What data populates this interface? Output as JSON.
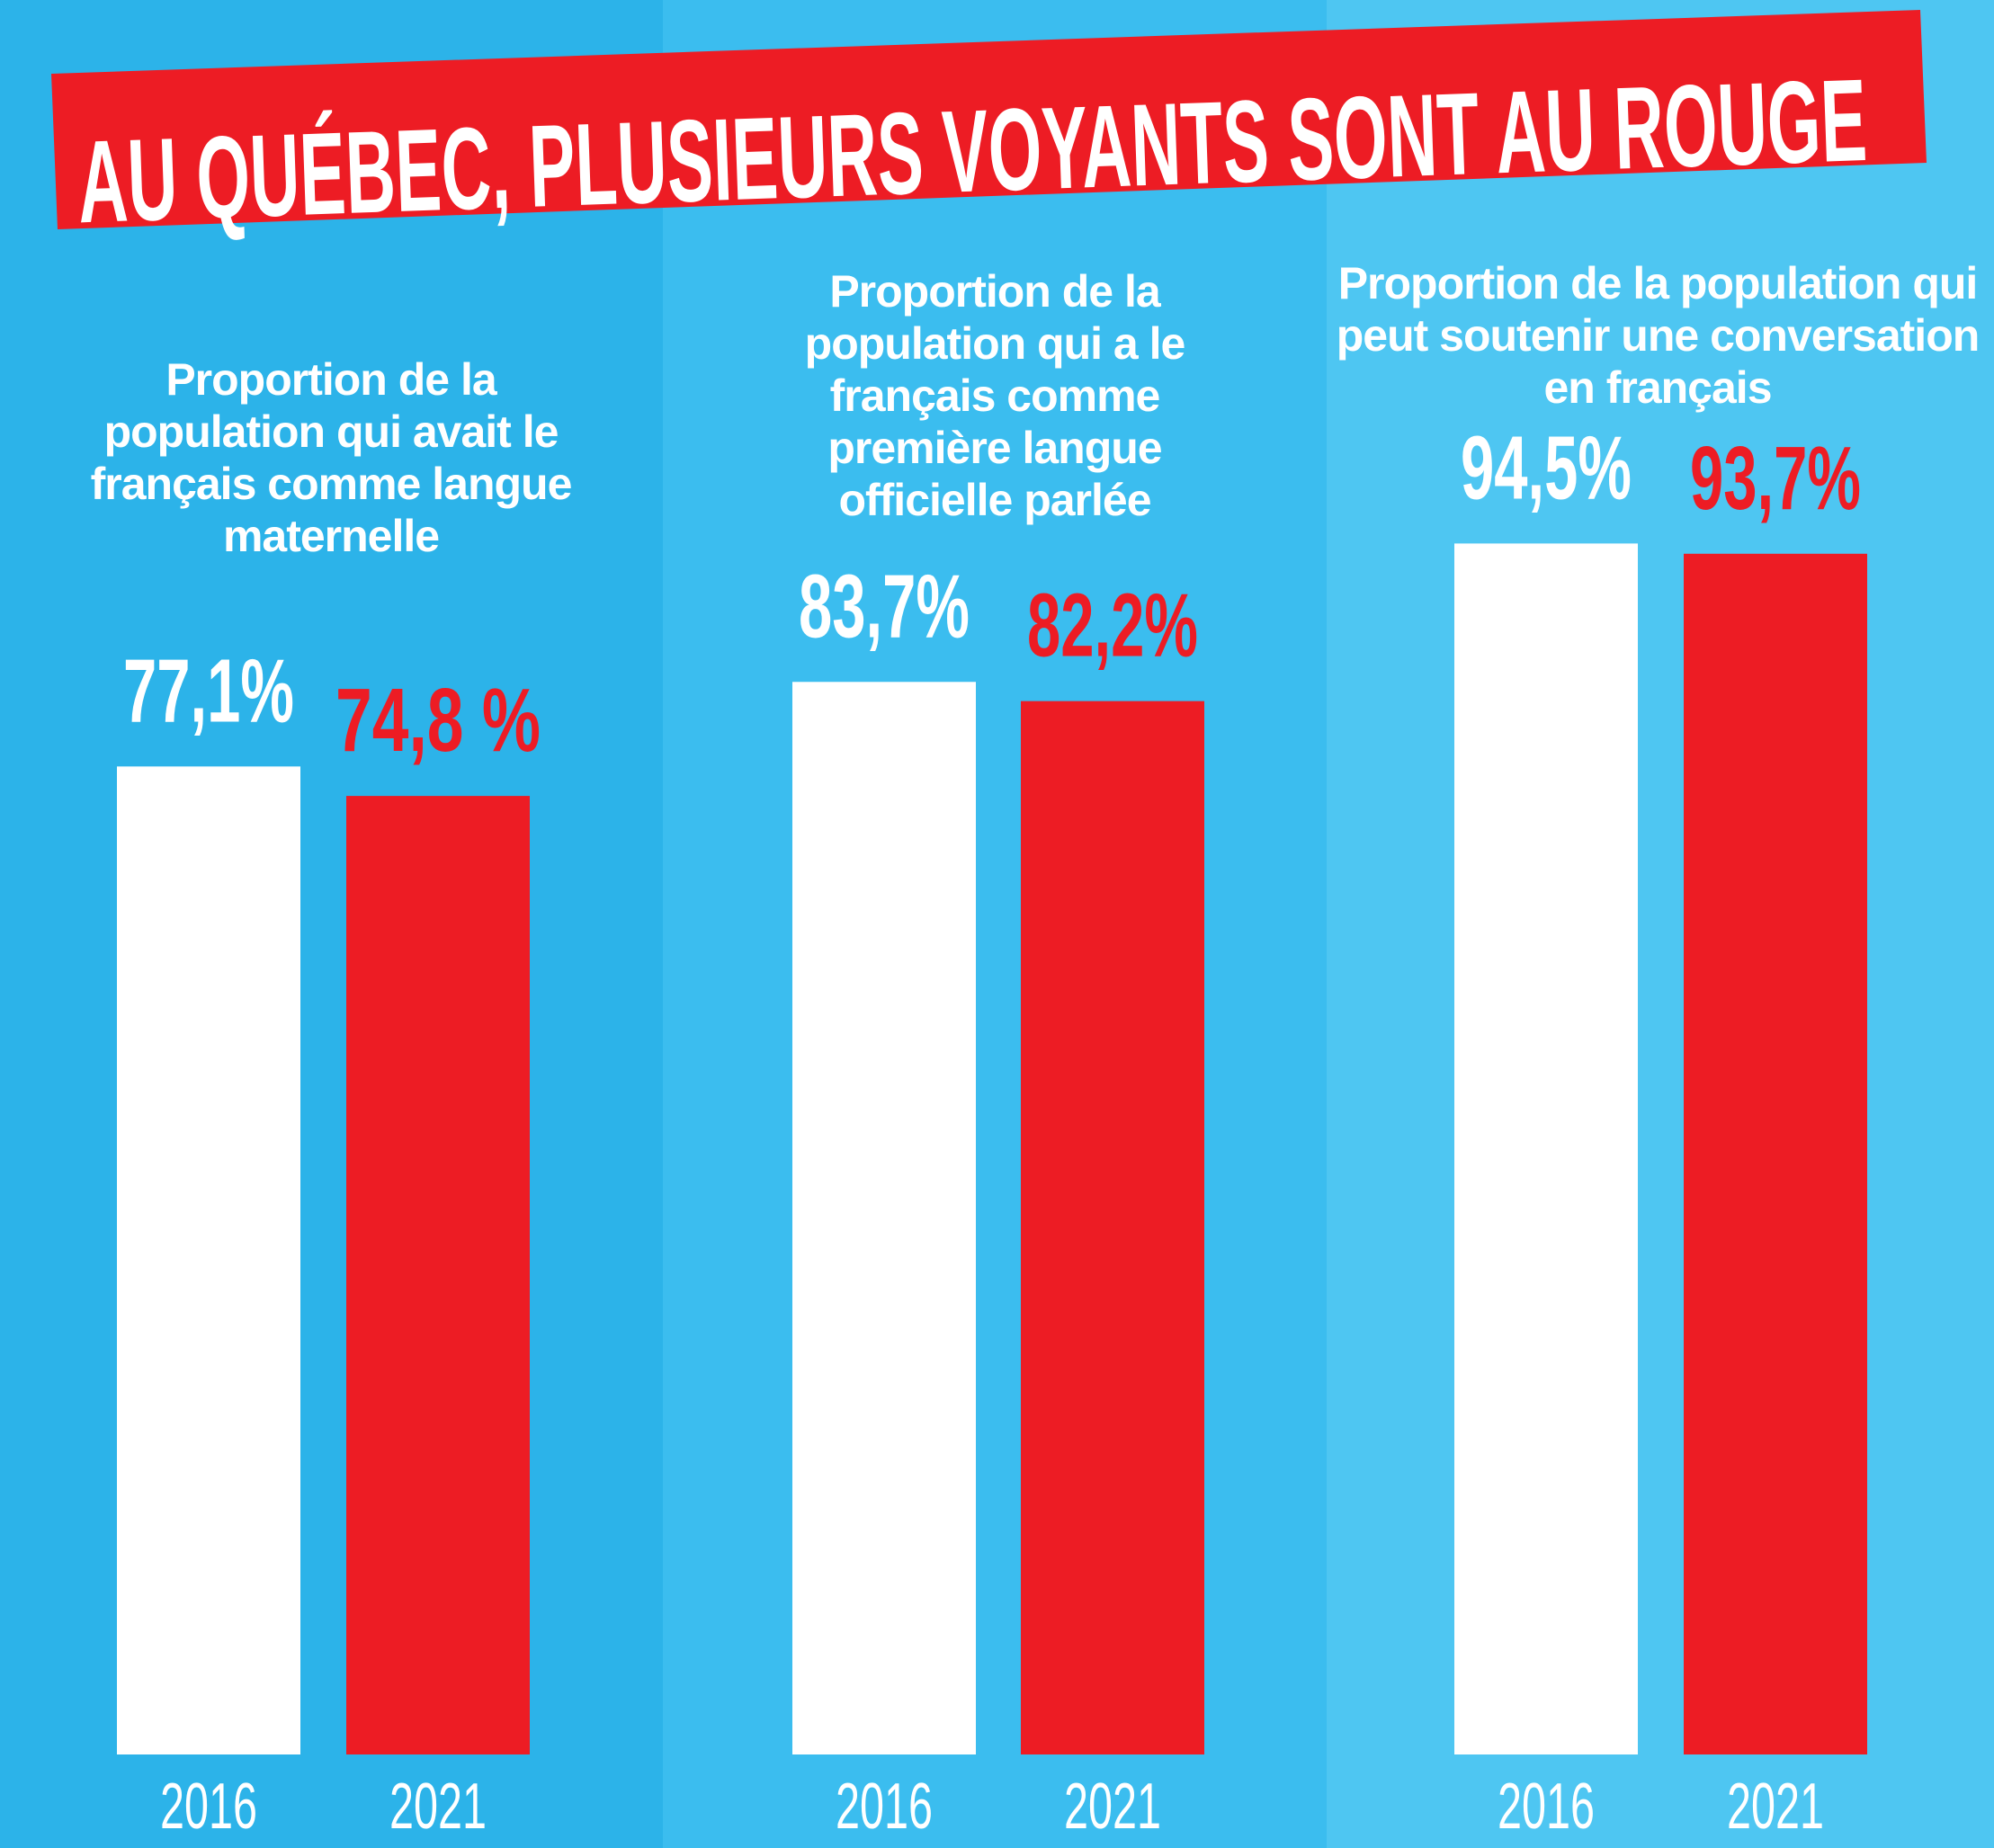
{
  "title": "AU QUÉBEC, PLUSIEURS VOYANTS SONT AU ROUGE",
  "chart_data": [
    {
      "type": "bar",
      "title": "Proportion de la population qui avait le français comme langue maternelle",
      "categories": [
        "2016",
        "2021"
      ],
      "values": [
        77.1,
        74.8
      ],
      "value_labels": [
        "77,1%",
        "74,8 %"
      ],
      "colors": [
        "#ffffff",
        "#ed1c24"
      ],
      "ylim": [
        0,
        100
      ]
    },
    {
      "type": "bar",
      "title": "Proportion de la population qui a le français comme première langue officielle parlée",
      "categories": [
        "2016",
        "2021"
      ],
      "values": [
        83.7,
        82.2
      ],
      "value_labels": [
        "83,7%",
        "82,2%"
      ],
      "colors": [
        "#ffffff",
        "#ed1c24"
      ],
      "ylim": [
        0,
        100
      ]
    },
    {
      "type": "bar",
      "title": "Proportion de la population qui peut soutenir une conversation en français",
      "categories": [
        "2016",
        "2021"
      ],
      "values": [
        94.5,
        93.7
      ],
      "value_labels": [
        "94,5%",
        "93,7%"
      ],
      "colors": [
        "#ffffff",
        "#ed1c24"
      ],
      "ylim": [
        0,
        100
      ]
    }
  ]
}
